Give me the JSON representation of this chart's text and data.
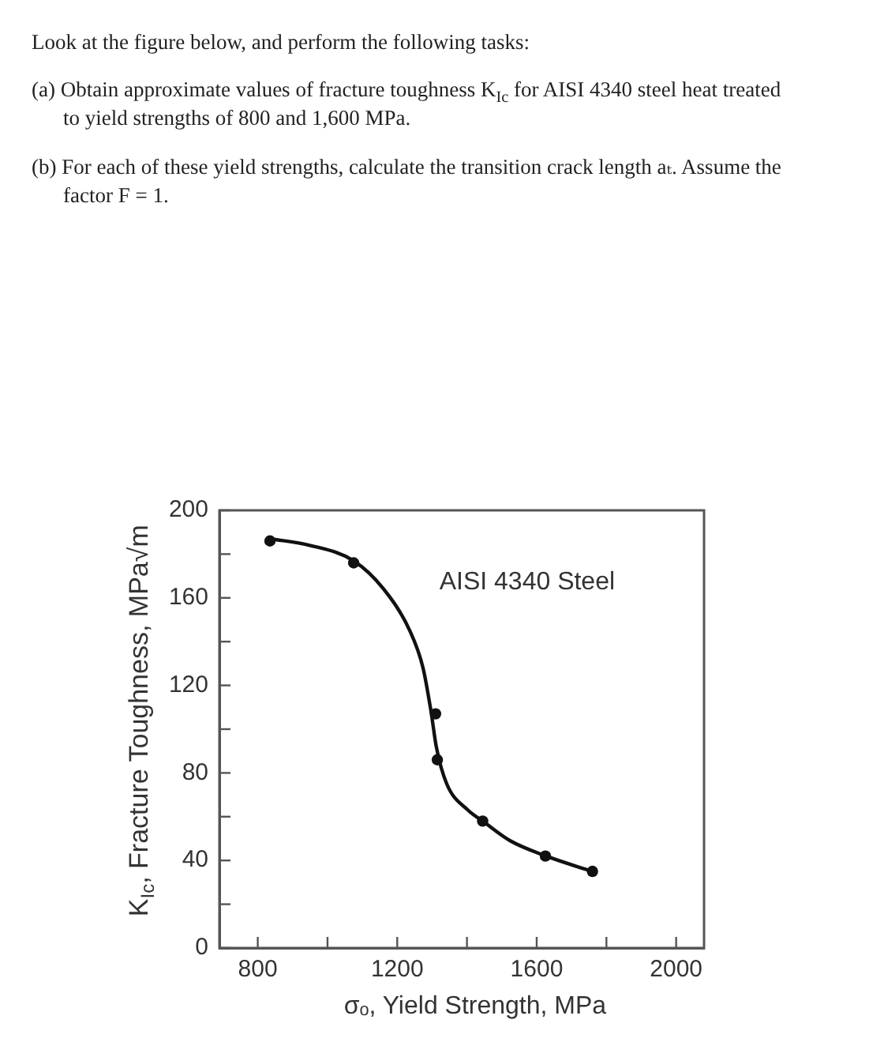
{
  "chart_data": {
    "type": "scatter",
    "title": "Look at the figure below, and perform the following tasks:",
    "annotations": [
      "(a) Obtain approximate values of fracture toughness K$_{Ic}$ for AISI 4340 steel heat treated to yield strengths of 800 and 1,600 MPa.",
      "(b) For each of these yield strengths, calculate the transition crack length aₜ. Assume the factor F = 1."
    ],
    "xlabel": "σₒ, Yield Strength, MPa",
    "ylabel": "K$_{Ic}$, Fracture Toughness, MPa√m",
    "series": [
      {
        "type": "scatter",
        "color": "#111111",
        "x": [
          835,
          1075,
          1310,
          1315,
          1445,
          1625,
          1760
        ],
        "values": [
          186,
          176,
          107,
          86,
          58,
          42,
          35
        ]
      },
      {
        "type": "line",
        "name": "AISI 4340 Steel",
        "color": "#111111",
        "marker": "none",
        "x": [
          835,
          949,
          1074,
          1161,
          1236,
          1274,
          1297,
          1312,
          1342,
          1403,
          1445,
          1524,
          1627,
          1759
        ],
        "values": [
          187,
          184,
          177,
          164,
          145,
          128,
          108,
          92,
          75,
          63,
          58,
          49,
          42,
          35
        ]
      }
    ],
    "xlim": [
      690,
      2080
    ],
    "xticks": [
      800,
      {
        "value": 1000,
        "label": null
      },
      1200,
      {
        "value": 1400,
        "label": null
      },
      1600,
      {
        "value": 1800,
        "label": null
      },
      2000
    ],
    "ylim": [
      0,
      200
    ],
    "yticks": [
      0,
      {
        "value": 20,
        "label": null
      },
      40,
      {
        "value": 60,
        "label": null
      },
      80,
      {
        "value": 100,
        "label": null
      },
      120,
      {
        "value": 140,
        "label": null
      },
      160,
      {
        "value": 180,
        "label": null
      },
      200
    ],
    "marker": "circle",
    "grid": false,
    "legend": false
  }
}
